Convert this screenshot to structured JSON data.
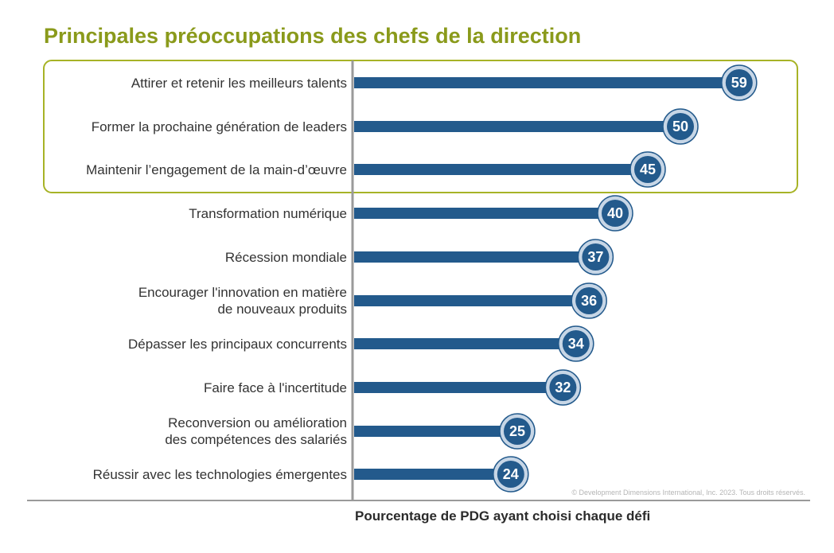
{
  "colors": {
    "title": "#8a9a1b",
    "bar": "#235a8c",
    "circle_fill": "#235a8c",
    "circle_ring": "#c7d6e6",
    "highlight_border": "#a7b326",
    "axis": "#9a9a9a"
  },
  "copyright": "© Development Dimensions International, Inc. 2023. Tous droits réservés.",
  "chart_data": {
    "type": "bar",
    "orientation": "horizontal",
    "title": "Principales préoccupations des chefs de la direction",
    "xlabel": "Pourcentage de PDG ayant choisi chaque défi",
    "ylabel": "",
    "xlim": [
      0,
      65
    ],
    "grid": false,
    "highlighted_categories": [
      0,
      1,
      2
    ],
    "categories": [
      [
        "Attirer et retenir les meilleurs talents"
      ],
      [
        "Former la prochaine génération de leaders"
      ],
      [
        "Maintenir l’engagement de la main-d’œuvre"
      ],
      [
        "Transformation numérique"
      ],
      [
        "Récession mondiale"
      ],
      [
        "Encourager l'innovation en matière",
        "de nouveaux produits"
      ],
      [
        "Dépasser les principaux concurrents"
      ],
      [
        "Faire face à l'incertitude"
      ],
      [
        "Reconversion ou amélioration",
        "des compétences des salariés"
      ],
      [
        "Réussir avec les technologies émergentes"
      ]
    ],
    "values": [
      59,
      50,
      45,
      40,
      37,
      36,
      34,
      32,
      25,
      24
    ]
  }
}
